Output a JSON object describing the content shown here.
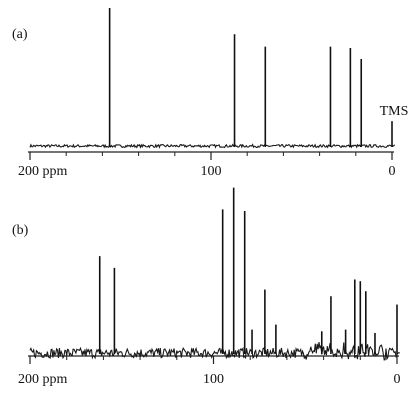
{
  "chart_data": [
    {
      "type": "line",
      "panel_label": "(a)",
      "x_unit": "ppm",
      "x_reversed": true,
      "xlim": [
        200,
        0
      ],
      "ylim": [
        0,
        1
      ],
      "grid": false,
      "x_tick_labels": [
        {
          "value": 200,
          "text": "200 ppm"
        },
        {
          "value": 100,
          "text": "100"
        },
        {
          "value": 0,
          "text": "0"
        }
      ],
      "x_minor_ticks": [
        180,
        160,
        140,
        120,
        80,
        60,
        40,
        20
      ],
      "series": [
        {
          "peaks": [
            {
              "ppm": 156.0,
              "height": 1.0
            },
            {
              "ppm": 87.0,
              "height": 0.81
            },
            {
              "ppm": 70.0,
              "height": 0.72
            },
            {
              "ppm": 34.0,
              "height": 0.72
            },
            {
              "ppm": 23.0,
              "height": 0.71
            },
            {
              "ppm": 17.0,
              "height": 0.63
            },
            {
              "ppm": 0.0,
              "height": 0.18
            }
          ],
          "noise": 0.01
        }
      ],
      "annotations": [
        {
          "text": "TMS",
          "ppm": 0.0
        }
      ]
    },
    {
      "type": "line",
      "panel_label": "(b)",
      "x_unit": "ppm",
      "x_reversed": true,
      "xlim": [
        200,
        0
      ],
      "ylim": [
        0,
        1
      ],
      "grid": false,
      "x_tick_labels": [
        {
          "value": 200,
          "text": "200 ppm"
        },
        {
          "value": 100,
          "text": "100"
        },
        {
          "value": 0,
          "text": "0"
        }
      ],
      "x_minor_ticks": [
        180,
        160,
        140,
        120,
        80,
        60,
        40,
        20
      ],
      "series": [
        {
          "peaks": [
            {
              "ppm": 162.0,
              "height": 0.58
            },
            {
              "ppm": 154.0,
              "height": 0.51
            },
            {
              "ppm": 95.0,
              "height": 0.86
            },
            {
              "ppm": 89.0,
              "height": 0.99
            },
            {
              "ppm": 83.0,
              "height": 0.85
            },
            {
              "ppm": 79.0,
              "height": 0.14
            },
            {
              "ppm": 72.0,
              "height": 0.38
            },
            {
              "ppm": 66.0,
              "height": 0.17
            },
            {
              "ppm": 41.0,
              "height": 0.13
            },
            {
              "ppm": 36.0,
              "height": 0.34
            },
            {
              "ppm": 28.0,
              "height": 0.14
            },
            {
              "ppm": 23.0,
              "height": 0.44
            },
            {
              "ppm": 20.0,
              "height": 0.43
            },
            {
              "ppm": 17.0,
              "height": 0.37
            },
            {
              "ppm": 12.0,
              "height": 0.12
            },
            {
              "ppm": 0.0,
              "height": 0.29
            }
          ],
          "noise": 0.03
        }
      ],
      "annotations": []
    }
  ]
}
